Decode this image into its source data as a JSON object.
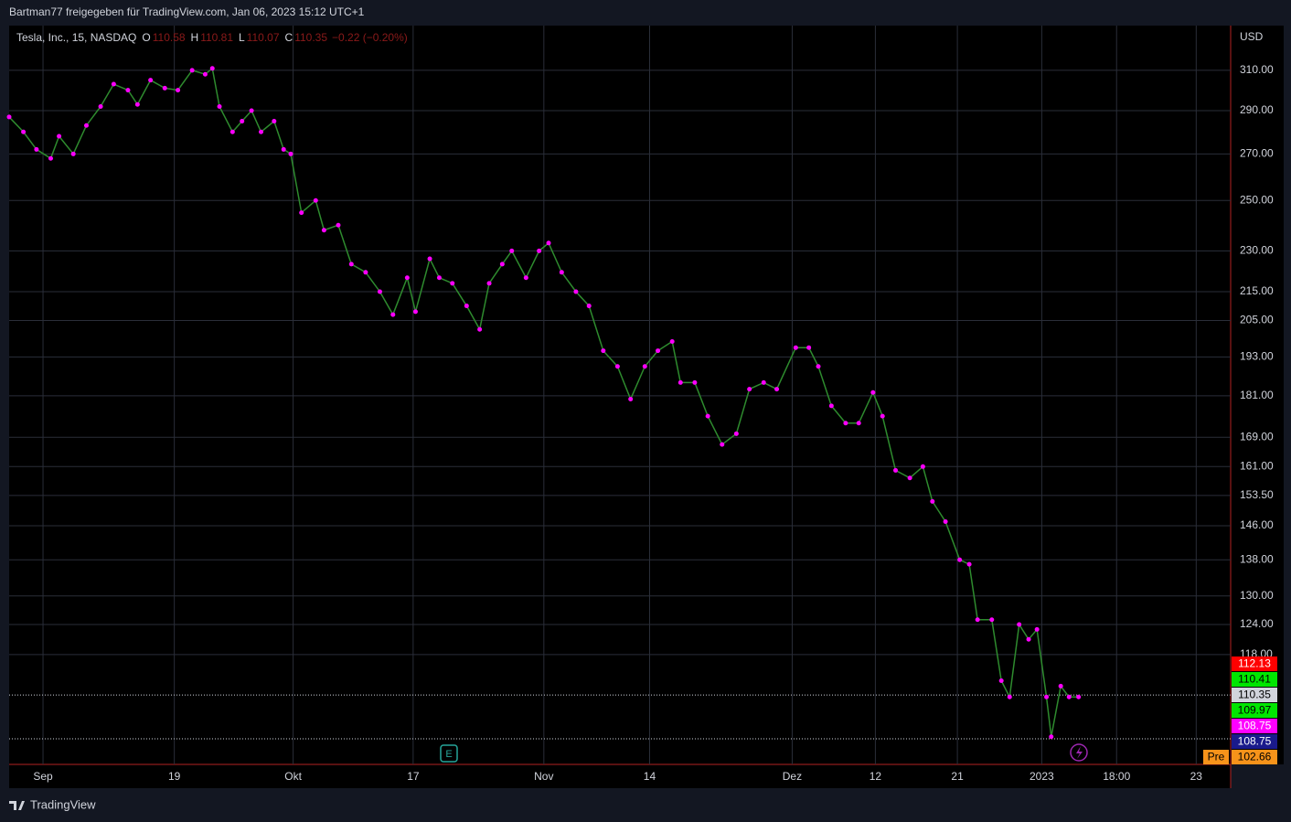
{
  "header": {
    "text": "Bartman77 freigegeben für TradingView.com, Jan 06, 2023 15:12 UTC+1"
  },
  "footer": {
    "brand": "TradingView"
  },
  "chart_data": {
    "type": "line",
    "symbol": "Tesla, Inc., 15, NASDAQ",
    "ohlc": [
      {
        "label": "O",
        "value": 110.58
      },
      {
        "label": "H",
        "value": 110.81
      },
      {
        "label": "L",
        "value": 110.07
      },
      {
        "label": "C",
        "value": 110.35
      }
    ],
    "change": "−0.22 (−0.20%)",
    "currency": "USD",
    "log_scale": true,
    "grid": true,
    "xlim": [
      0,
      102.8
    ],
    "xticks": [
      {
        "value": 2.85,
        "label": "Sep"
      },
      {
        "value": 13.9,
        "label": "19"
      },
      {
        "value": 23.9,
        "label": "Okt"
      },
      {
        "value": 34,
        "label": "17"
      },
      {
        "value": 45,
        "label": "Nov"
      },
      {
        "value": 53.9,
        "label": "14"
      },
      {
        "value": 65.9,
        "label": "Dez"
      },
      {
        "value": 72.9,
        "label": "12"
      },
      {
        "value": 79.8,
        "label": "21"
      },
      {
        "value": 86.9,
        "label": "2023"
      },
      {
        "value": 93.2,
        "label": "18:00"
      },
      {
        "value": 99.9,
        "label": "23"
      }
    ],
    "ylim": [
      98.4,
      333.8
    ],
    "yticks": [
      {
        "value": 310,
        "label": "310.00"
      },
      {
        "value": 290,
        "label": "290.00"
      },
      {
        "value": 270,
        "label": "270.00"
      },
      {
        "value": 250,
        "label": "250.00"
      },
      {
        "value": 230,
        "label": "230.00"
      },
      {
        "value": 215,
        "label": "215.00"
      },
      {
        "value": 205,
        "label": "205.00"
      },
      {
        "value": 193,
        "label": "193.00"
      },
      {
        "value": 181,
        "label": "181.00"
      },
      {
        "value": 169,
        "label": "169.00"
      },
      {
        "value": 161,
        "label": "161.00"
      },
      {
        "value": 153.5,
        "label": "153.50"
      },
      {
        "value": 146,
        "label": "146.00"
      },
      {
        "value": 138,
        "label": "138.00"
      },
      {
        "value": 130,
        "label": "130.00"
      },
      {
        "value": 124,
        "label": "124.00"
      },
      {
        "value": 118,
        "label": "118.00"
      }
    ],
    "series": [
      {
        "color": "#2e8b2e",
        "marker_color": "#ff00ff",
        "x": [
          0,
          1.2,
          2.3,
          3.5,
          4.2,
          5.4,
          6.5,
          7.7,
          8.8,
          10,
          10.8,
          11.9,
          13.1,
          14.2,
          15.4,
          16.5,
          17.1,
          17.7,
          18.8,
          19.6,
          20.4,
          21.2,
          22.3,
          23.1,
          23.7,
          24.6,
          25.8,
          26.5,
          27.7,
          28.8,
          30,
          31.2,
          32.3,
          33.5,
          34.2,
          35.4,
          36.2,
          37.3,
          38.5,
          39.6,
          40.4,
          41.5,
          42.3,
          43.5,
          44.6,
          45.4,
          46.5,
          47.7,
          48.8,
          50,
          51.2,
          52.3,
          53.5,
          54.6,
          55.8,
          56.5,
          57.7,
          58.8,
          60,
          61.2,
          62.3,
          63.5,
          64.6,
          66.2,
          67.3,
          68.1,
          69.2,
          70.4,
          71.5,
          72.7,
          73.5,
          74.6,
          75.8,
          76.9,
          77.7,
          78.8,
          80,
          80.8,
          81.5,
          82.7,
          83.5,
          84.2,
          85,
          85.8,
          86.5,
          87.3,
          87.7,
          88.5,
          89.2,
          90
        ],
        "values": [
          287,
          280,
          272,
          268,
          278,
          270,
          283,
          292,
          303,
          300,
          293,
          305,
          301,
          300,
          310,
          308,
          311,
          292,
          280,
          285,
          290,
          280,
          285,
          272,
          270,
          245,
          250,
          238,
          240,
          225,
          222,
          215,
          207,
          220,
          208,
          227,
          220,
          218,
          210,
          202,
          218,
          225,
          230,
          220,
          230,
          233,
          222,
          215,
          210,
          195,
          190,
          180,
          190,
          195,
          198,
          185,
          185,
          175,
          167,
          170,
          183,
          185,
          183,
          196,
          196,
          190,
          178,
          173,
          173,
          182,
          175,
          160,
          158,
          161,
          152,
          147,
          138,
          137,
          125,
          125,
          113,
          110,
          124,
          121,
          123,
          110,
          103,
          112,
          110,
          110
        ]
      }
    ],
    "price_lines": [
      110.35,
      102.66
    ],
    "price_tags": [
      {
        "value": 112.13,
        "color": "#ff0000",
        "text_color": "#ffffff"
      },
      {
        "value": 110.41,
        "color": "#00e600",
        "text_color": "#000000"
      },
      {
        "value": 110.35,
        "color": "#d1d4dc",
        "text_color": "#000000"
      },
      {
        "value": 109.97,
        "color": "#00e600",
        "text_color": "#000000"
      },
      {
        "value": 108.75,
        "color": "#ff00ff",
        "text_color": "#ffffff"
      },
      {
        "value": 108.75,
        "color": "#1a1a8c",
        "text_color": "#ffffff"
      },
      {
        "value": 102.66,
        "color": "#f7931a",
        "text_color": "#000000",
        "session": "Pre"
      }
    ]
  }
}
